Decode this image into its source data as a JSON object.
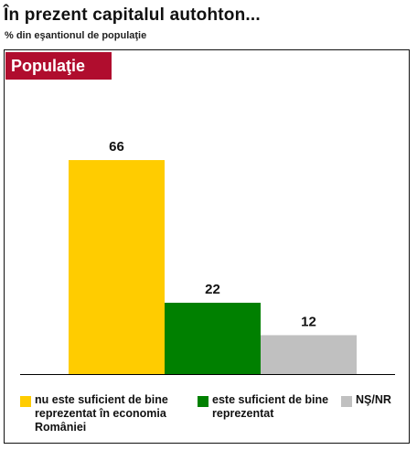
{
  "title": "În prezent capitalul autohton...",
  "subtitle": "% din eşantionul de populaţie",
  "badge": "Populaţie",
  "colors": {
    "badge": "#b00d2e"
  },
  "chart_data": {
    "type": "bar",
    "categories": [
      "nu este suficient de bine reprezentat în economia României",
      "este suficient de bine reprezentat",
      "NŞ/NR"
    ],
    "values": [
      66,
      22,
      12
    ],
    "colors": [
      "#ffcc00",
      "#008000",
      "#c0c0c0"
    ],
    "data_labels": [
      "66",
      "22",
      "12"
    ],
    "ylim": [
      0,
      80
    ],
    "legend": {
      "position": "bottom",
      "entries": [
        "nu este suficient de bine reprezentat în economia României",
        "este suficient de bine reprezentat",
        "NŞ/NR"
      ]
    }
  }
}
